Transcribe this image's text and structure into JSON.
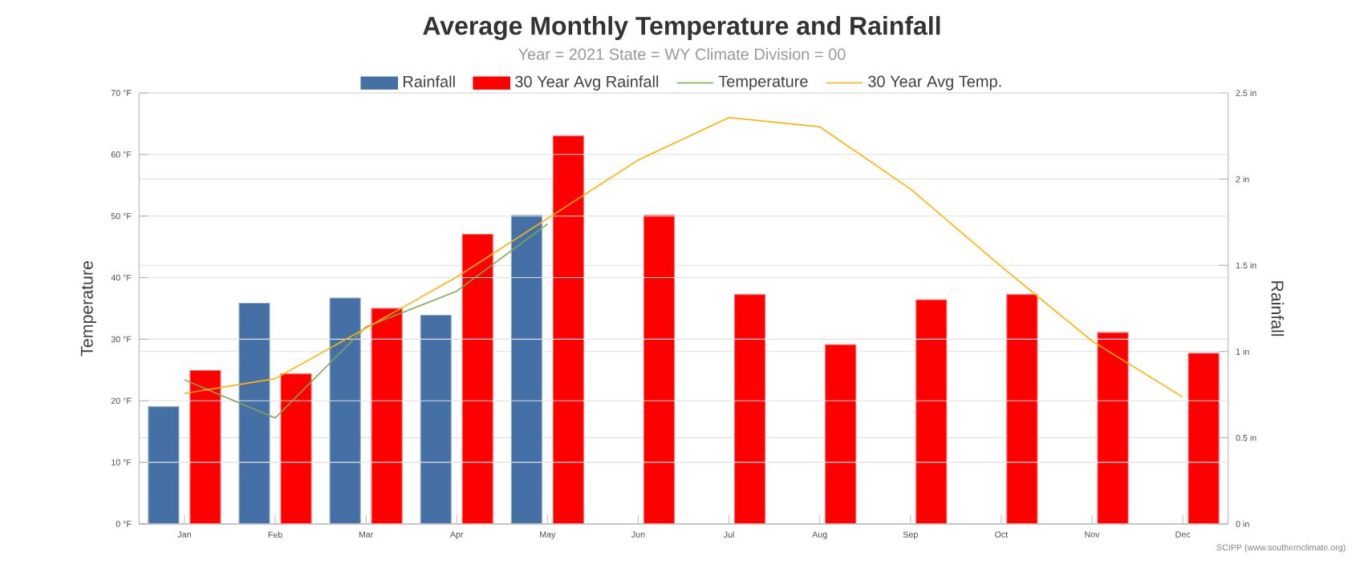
{
  "chart_data": {
    "type": "bar",
    "title": "Average Monthly Temperature and Rainfall",
    "subtitle": "Year = 2021 State = WY Climate Division = 00",
    "ylabel": "Temperature",
    "y2label": "Rainfall",
    "categories": [
      "Jan",
      "Feb",
      "Mar",
      "Apr",
      "May",
      "Jun",
      "Jul",
      "Aug",
      "Sep",
      "Oct",
      "Nov",
      "Dec"
    ],
    "series": [
      {
        "name": "Rainfall",
        "axis": "y2",
        "color": "#4470a5",
        "values": [
          0.68,
          1.28,
          1.31,
          1.21,
          1.79,
          null,
          null,
          null,
          null,
          null,
          null,
          null
        ]
      },
      {
        "name": "30 Year Avg Rainfall",
        "axis": "y2",
        "color": "#ff0000",
        "values": [
          0.89,
          0.87,
          1.25,
          1.68,
          2.25,
          1.79,
          1.33,
          1.04,
          1.3,
          1.33,
          1.11,
          0.99
        ]
      },
      {
        "name": "Temperature",
        "type": "line",
        "axis": "y",
        "color": "#7da850",
        "values": [
          23.4,
          17.2,
          32.0,
          37.8,
          48.7,
          null,
          null,
          null,
          null,
          null,
          null,
          null
        ]
      },
      {
        "name": "30 Year Avg Temp.",
        "type": "line",
        "axis": "y",
        "color": "#ffb300",
        "values": [
          21.2,
          23.6,
          31.8,
          40.1,
          49.6,
          59.1,
          66.0,
          64.5,
          54.4,
          41.8,
          29.7,
          20.6
        ]
      }
    ],
    "ylim": [
      0,
      70
    ],
    "yticks": [
      {
        "value": 0,
        "label": "0 °F"
      },
      {
        "value": 10,
        "label": "10 °F"
      },
      {
        "value": 20,
        "label": "20 °F"
      },
      {
        "value": 30,
        "label": "30 °F"
      },
      {
        "value": 40,
        "label": "40 °F"
      },
      {
        "value": 50,
        "label": "50 °F"
      },
      {
        "value": 60,
        "label": "60 °F"
      },
      {
        "value": 70,
        "label": "70 °F"
      }
    ],
    "y2lim": [
      0,
      2.5
    ],
    "y2ticks": [
      {
        "value": 0,
        "label": "0 in"
      },
      {
        "value": 0.5,
        "label": "0.5 in"
      },
      {
        "value": 1,
        "label": "1 in"
      },
      {
        "value": 1.5,
        "label": "1.5 in"
      },
      {
        "value": 2,
        "label": "2 in"
      },
      {
        "value": 2.5,
        "label": "2.5 in"
      }
    ],
    "grid": "y",
    "legend": "top",
    "annotations": [
      "SCIPP (www.southernclimate.org)"
    ]
  }
}
